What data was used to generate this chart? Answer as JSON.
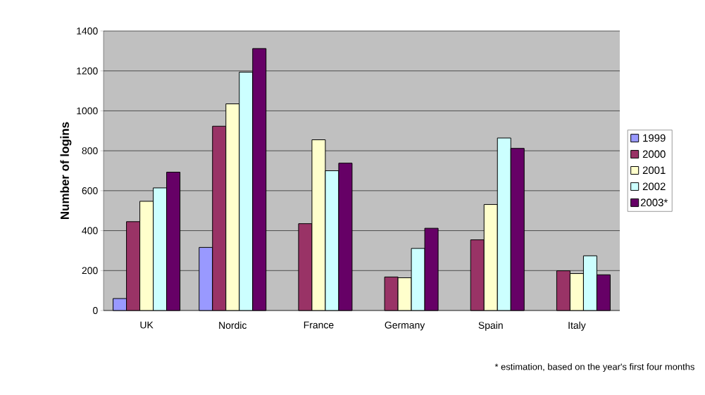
{
  "chart_data": {
    "type": "bar",
    "ylabel": "Number of logins",
    "categories": [
      "UK",
      "Nordic",
      "France",
      "Germany",
      "Spain",
      "Italy"
    ],
    "series": [
      {
        "name": "1999",
        "color": "#9999ff",
        "values": [
          60,
          316,
          null,
          null,
          null,
          null
        ]
      },
      {
        "name": "2000",
        "color": "#993366",
        "values": [
          445,
          923,
          435,
          168,
          354,
          199
        ]
      },
      {
        "name": "2001",
        "color": "#ffffcc",
        "values": [
          547,
          1035,
          855,
          164,
          531,
          185
        ]
      },
      {
        "name": "2002",
        "color": "#ccffff",
        "values": [
          614,
          1194,
          700,
          311,
          864,
          274
        ]
      },
      {
        "name": "2003*",
        "color": "#660066",
        "values": [
          693,
          1312,
          738,
          412,
          812,
          179
        ]
      }
    ],
    "ylim": [
      0,
      1400
    ],
    "yticks": [
      0,
      200,
      400,
      600,
      800,
      1000,
      1200,
      1400
    ],
    "grid": "y",
    "legend": "right",
    "annotations": [
      "* estimation, based on the year's first four months"
    ]
  }
}
